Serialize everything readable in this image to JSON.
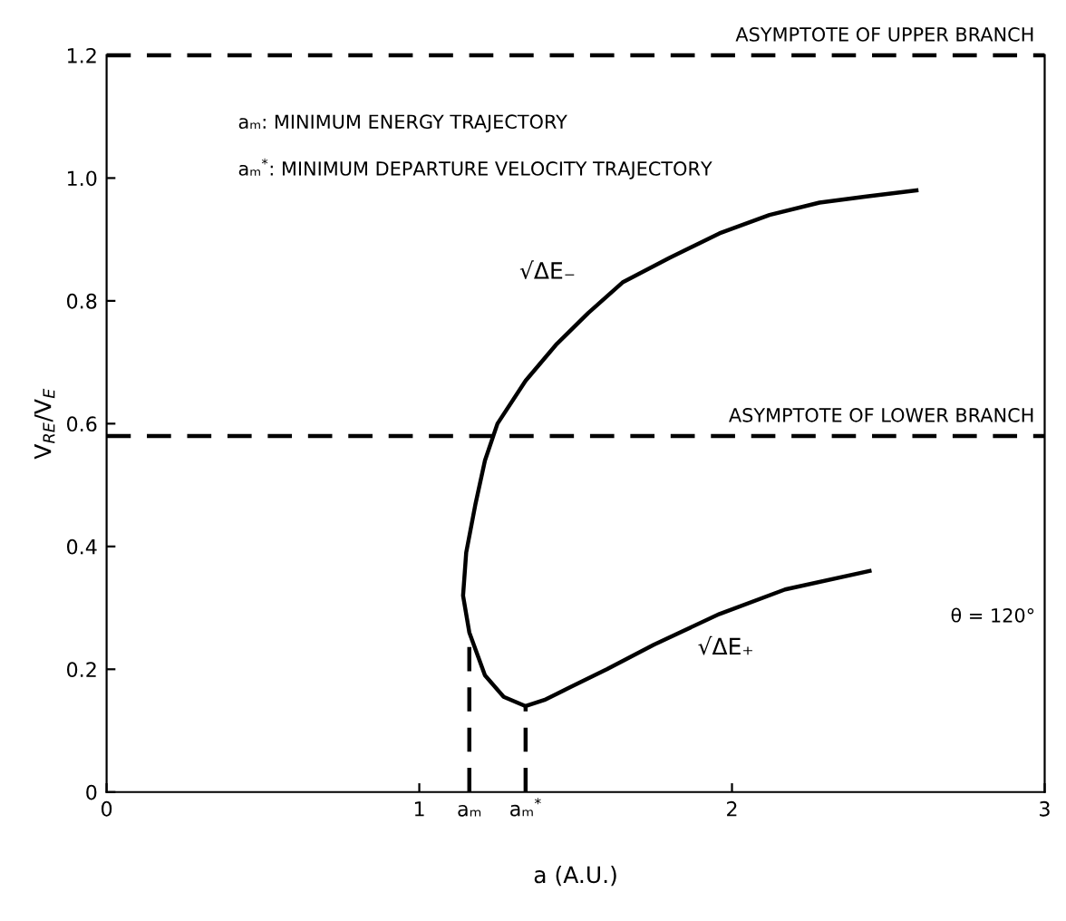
{
  "chart_data": {
    "type": "line",
    "xlabel": "a (A.U.)",
    "ylabel": "V$_{RE}$/V$_{E}$",
    "series": [
      {
        "color": "#000000",
        "x": [
          2.59,
          2.43,
          2.28,
          2.12,
          1.96,
          1.8,
          1.65,
          1.54,
          1.44,
          1.34,
          1.25,
          1.21,
          1.18,
          1.15,
          1.14,
          1.16,
          1.21,
          1.27,
          1.34,
          1.4,
          1.48,
          1.6,
          1.75,
          1.96,
          2.17,
          2.44
        ],
        "values": [
          0.98,
          0.97,
          0.96,
          0.94,
          0.91,
          0.87,
          0.83,
          0.78,
          0.73,
          0.67,
          0.6,
          0.54,
          0.47,
          0.39,
          0.32,
          0.26,
          0.19,
          0.155,
          0.14,
          0.15,
          0.17,
          0.2,
          0.24,
          0.29,
          0.33,
          0.36
        ]
      },
      {
        "color": "#000000",
        "line_style": "dashed",
        "x": [
          1.16,
          1.16
        ],
        "values": [
          0,
          0.26
        ]
      },
      {
        "color": "#000000",
        "line_style": "dashed",
        "x": [
          1.34,
          1.34
        ],
        "values": [
          0,
          0.14
        ]
      }
    ],
    "xlim": [
      0,
      3
    ],
    "ylim": [
      0,
      1.2
    ],
    "xticks": [
      0,
      1,
      {
        "value": 1.16,
        "label": "aₘ"
      },
      {
        "value": 1.34,
        "label": "aₘ$^{*}$"
      },
      2,
      3
    ],
    "yticks": [
      0,
      0.2,
      0.4,
      0.6,
      0.8,
      {
        "value": 1,
        "label": "1.0"
      },
      1.2
    ],
    "ref_lines": [
      {
        "axis": "y",
        "value": 1.2,
        "label": "ASYMPTOTE OF UPPER BRANCH",
        "line_style": "dashed",
        "color": "#000000"
      },
      {
        "axis": "y",
        "value": 0.58,
        "label": "ASYMPTOTE OF LOWER BRANCH",
        "line_style": "dashed",
        "color": "#000000"
      }
    ],
    "annotations": [
      "aₘ: MINIMUM ENERGY TRAJECTORY",
      "aₘ$^{*}$: MINIMUM DEPARTURE VELOCITY TRAJECTORY",
      "√ΔE₋",
      "√ΔE₊",
      "θ = 120°"
    ],
    "grid": false
  }
}
